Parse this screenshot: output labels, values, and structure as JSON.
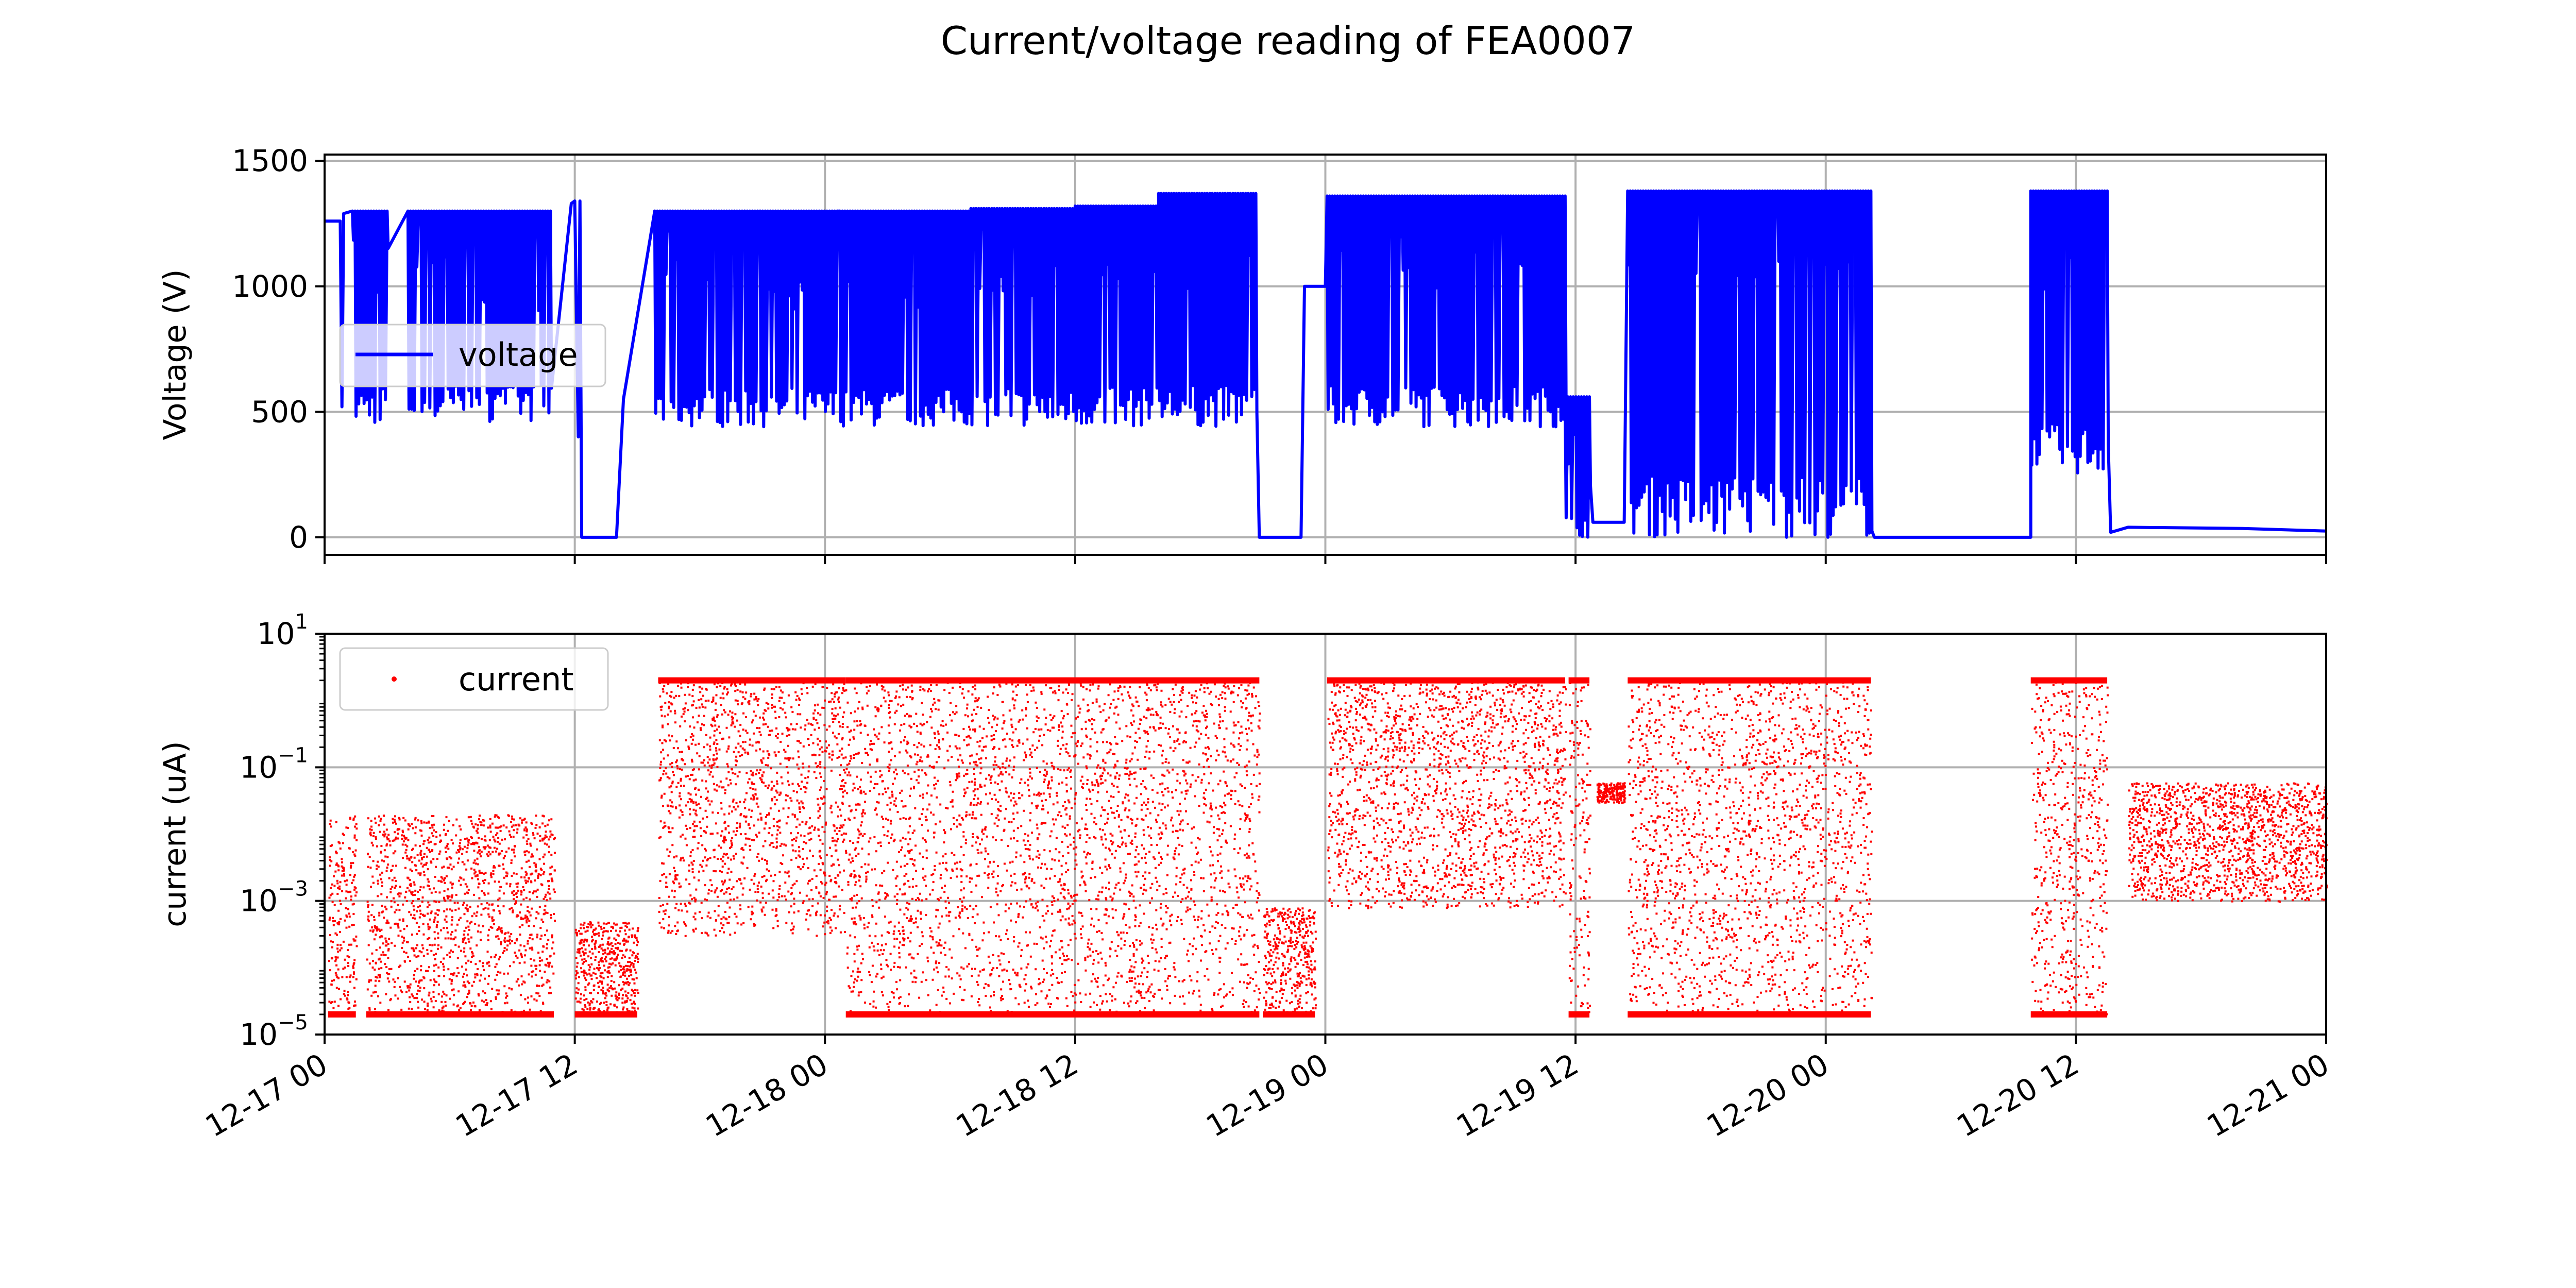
{
  "chart_data": [
    {
      "type": "line",
      "title": "Current/voltage reading of FEA0007",
      "xlabel": "",
      "ylabel": "Voltage (V)",
      "xlim": [
        "2023-12-17 00:00",
        "2023-12-21 00:00"
      ],
      "ylim": [
        -70,
        1525
      ],
      "y_ticks": [
        "0",
        "500",
        "1000",
        "1500"
      ],
      "x_ticks": [
        "12-17 00",
        "12-17 12",
        "12-18 00",
        "12-18 12",
        "12-19 00",
        "12-19 12",
        "12-20 00",
        "12-20 12",
        "12-21 00"
      ],
      "grid": true,
      "legend": {
        "placement": "center-left",
        "entries": [
          "voltage"
        ]
      },
      "colors": {
        "voltage": "#0000ff"
      },
      "series": [
        {
          "name": "voltage",
          "style": "line",
          "segments": [
            {
              "kind": "point",
              "x": "2023-12-17 00:00",
              "y": 1260
            },
            {
              "kind": "point",
              "x": "2023-12-17 00:45",
              "y": 1260
            },
            {
              "kind": "point",
              "x": "2023-12-17 00:50",
              "y": 520
            },
            {
              "kind": "point",
              "x": "2023-12-17 00:55",
              "y": 1290
            },
            {
              "kind": "band",
              "from": "2023-12-17 01:20",
              "to": "2023-12-17 03:00",
              "high": 1300,
              "low": 450
            },
            {
              "kind": "band",
              "from": "2023-12-17 04:00",
              "to": "2023-12-17 08:30",
              "high": 1300,
              "low": 460
            },
            {
              "kind": "band",
              "from": "2023-12-17 08:30",
              "to": "2023-12-17 10:50",
              "high": 1300,
              "low": 460
            },
            {
              "kind": "point",
              "x": "2023-12-17 11:50",
              "y": 1330
            },
            {
              "kind": "point",
              "x": "2023-12-17 12:00",
              "y": 1340
            },
            {
              "kind": "point",
              "x": "2023-12-17 12:10",
              "y": 400
            },
            {
              "kind": "point",
              "x": "2023-12-17 12:15",
              "y": 1340
            },
            {
              "kind": "point",
              "x": "2023-12-17 12:20",
              "y": 0
            },
            {
              "kind": "point",
              "x": "2023-12-17 14:00",
              "y": 0
            },
            {
              "kind": "point",
              "x": "2023-12-17 14:20",
              "y": 550
            },
            {
              "kind": "point",
              "x": "2023-12-17 15:50",
              "y": 1300
            },
            {
              "kind": "band",
              "from": "2023-12-17 15:50",
              "to": "2023-12-18 07:00",
              "high": 1300,
              "low": 440
            },
            {
              "kind": "band",
              "from": "2023-12-18 07:00",
              "to": "2023-12-18 12:00",
              "high": 1310,
              "low": 440
            },
            {
              "kind": "band",
              "from": "2023-12-18 12:00",
              "to": "2023-12-18 16:00",
              "high": 1320,
              "low": 440
            },
            {
              "kind": "band",
              "from": "2023-12-18 16:00",
              "to": "2023-12-18 20:40",
              "high": 1370,
              "low": 440
            },
            {
              "kind": "point",
              "x": "2023-12-18 20:50",
              "y": 0
            },
            {
              "kind": "point",
              "x": "2023-12-18 22:50",
              "y": 0
            },
            {
              "kind": "point",
              "x": "2023-12-18 23:00",
              "y": 1000
            },
            {
              "kind": "point",
              "x": "2023-12-19 00:00",
              "y": 1000
            },
            {
              "kind": "band",
              "from": "2023-12-19 00:05",
              "to": "2023-12-19 11:30",
              "high": 1360,
              "low": 440
            },
            {
              "kind": "band",
              "from": "2023-12-19 11:30",
              "to": "2023-12-19 12:40",
              "high": 560,
              "low": 0
            },
            {
              "kind": "point",
              "x": "2023-12-19 12:50",
              "y": 60
            },
            {
              "kind": "point",
              "x": "2023-12-19 14:20",
              "y": 60
            },
            {
              "kind": "band",
              "from": "2023-12-19 14:30",
              "to": "2023-12-20 02:10",
              "high": 1380,
              "low": 0
            },
            {
              "kind": "point",
              "x": "2023-12-20 02:20",
              "y": 0
            },
            {
              "kind": "point",
              "x": "2023-12-20 09:50",
              "y": 0
            },
            {
              "kind": "band",
              "from": "2023-12-20 09:50",
              "to": "2023-12-20 13:30",
              "high": 1380,
              "low": 250
            },
            {
              "kind": "point",
              "x": "2023-12-20 13:40",
              "y": 20
            },
            {
              "kind": "point",
              "x": "2023-12-20 14:30",
              "y": 40
            },
            {
              "kind": "point",
              "x": "2023-12-20 20:00",
              "y": 35
            },
            {
              "kind": "point",
              "x": "2023-12-21 00:00",
              "y": 25
            }
          ]
        }
      ]
    },
    {
      "type": "scatter",
      "title": "",
      "xlabel": "",
      "ylabel": "current (uA)",
      "xlim": [
        "2023-12-17 00:00",
        "2023-12-21 00:00"
      ],
      "yscale": "log",
      "ylim": [
        1e-05,
        10
      ],
      "y_ticks": [
        {
          "base": "10",
          "exp": "−5"
        },
        {
          "base": "10",
          "exp": "−3"
        },
        {
          "base": "10",
          "exp": "−1"
        },
        {
          "base": "10",
          "exp": "1"
        }
      ],
      "grid": true,
      "legend": {
        "placement": "top-left",
        "entries": [
          "current"
        ]
      },
      "colors": {
        "current": "#ff0000"
      },
      "series": [
        {
          "name": "current",
          "style": "markers",
          "clusters": [
            {
              "from": "2023-12-17 00:10",
              "to": "2023-12-17 01:30",
              "min": 2e-05,
              "max": 0.02,
              "sparse_max": 2
            },
            {
              "from": "2023-12-17 02:00",
              "to": "2023-12-17 11:00",
              "min": 2e-05,
              "max": 0.02,
              "sparse_max": 2
            },
            {
              "from": "2023-12-17 12:00",
              "to": "2023-12-17 15:00",
              "min": 2e-05,
              "max": 0.0005
            },
            {
              "from": "2023-12-17 16:00",
              "to": "2023-12-18 01:00",
              "min": 0.0003,
              "max": 2
            },
            {
              "from": "2023-12-18 01:00",
              "to": "2023-12-18 12:00",
              "min": 2e-05,
              "max": 2
            },
            {
              "from": "2023-12-18 12:00",
              "to": "2023-12-18 20:50",
              "min": 2e-05,
              "max": 2
            },
            {
              "from": "2023-12-18 21:00",
              "to": "2023-12-18 23:30",
              "min": 2e-05,
              "max": 0.0008
            },
            {
              "from": "2023-12-19 00:05",
              "to": "2023-12-19 11:30",
              "min": 0.0008,
              "max": 2
            },
            {
              "from": "2023-12-19 11:40",
              "to": "2023-12-19 12:40",
              "min": 2e-05,
              "max": 2
            },
            {
              "from": "2023-12-19 13:00",
              "to": "2023-12-19 14:20",
              "min": 0.03,
              "max": 0.06
            },
            {
              "from": "2023-12-19 14:30",
              "to": "2023-12-20 02:10",
              "min": 2e-05,
              "max": 2
            },
            {
              "from": "2023-12-20 09:50",
              "to": "2023-12-20 13:30",
              "min": 2e-05,
              "max": 2
            },
            {
              "from": "2023-12-20 14:30",
              "to": "2023-12-21 00:00",
              "min": 0.001,
              "max": 0.06
            }
          ]
        }
      ]
    }
  ]
}
